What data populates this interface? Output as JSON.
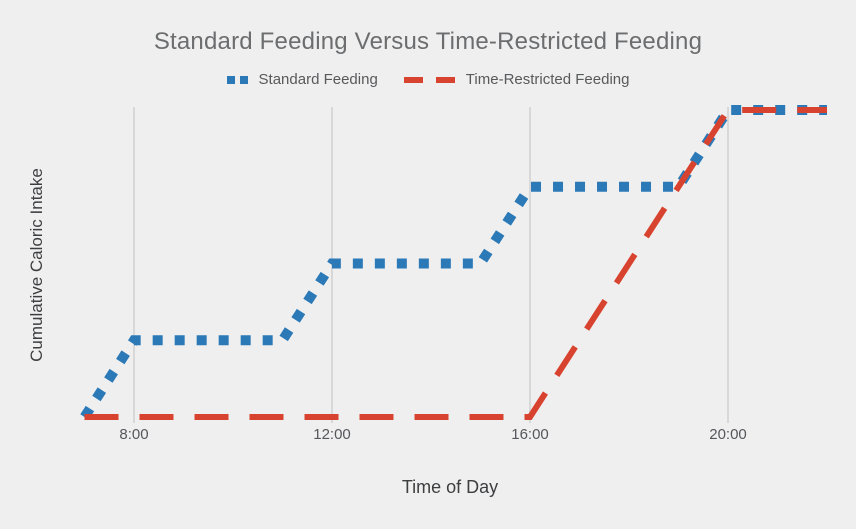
{
  "chart_data": {
    "type": "line",
    "title": "Standard Feeding Versus Time-Restricted Feeding",
    "xlabel": "Time of Day",
    "ylabel": "Cumulative Caloric Intake",
    "legend_position": "top-center",
    "grid": "vertical-gridlines-only",
    "background_color": "#efefef",
    "gridline_color": "#d8d8d8",
    "x_domain_hours": [
      7,
      22
    ],
    "y_domain": [
      0,
      100
    ],
    "y_tick_labels_shown": false,
    "x_ticks": [
      {
        "hour": 8,
        "label": "8:00"
      },
      {
        "hour": 12,
        "label": "12:00"
      },
      {
        "hour": 16,
        "label": "16:00"
      },
      {
        "hour": 20,
        "label": "20:00"
      }
    ],
    "series": [
      {
        "name": "Standard Feeding",
        "color": "#2b79b7",
        "dash_style": "dotted",
        "points": [
          [
            7,
            0
          ],
          [
            8,
            25
          ],
          [
            11,
            25
          ],
          [
            12,
            50
          ],
          [
            15,
            50
          ],
          [
            16,
            75
          ],
          [
            19,
            75
          ],
          [
            20,
            100
          ],
          [
            22,
            100
          ]
        ]
      },
      {
        "name": "Time-Restricted Feeding",
        "color": "#d8432f",
        "dash_style": "dashed",
        "points": [
          [
            7,
            0
          ],
          [
            16,
            0
          ],
          [
            20,
            100
          ],
          [
            22,
            100
          ]
        ]
      }
    ]
  }
}
